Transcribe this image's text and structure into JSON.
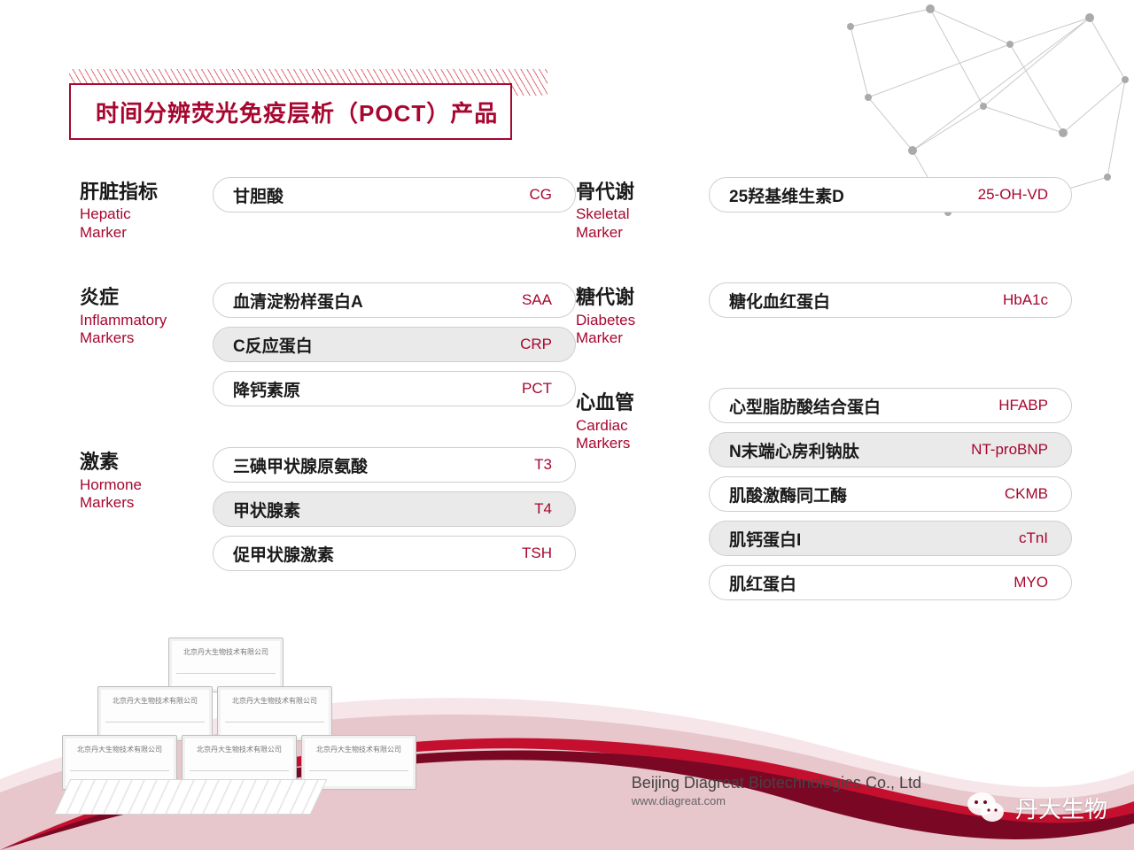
{
  "colors": {
    "brand_red": "#a7062f",
    "hatch_red": "#c90c22",
    "pill_border": "#cfcfcf",
    "pill_alt_bg": "#eaeaea",
    "text_dark": "#1a1a1a",
    "swoosh_top": "#7a0824",
    "swoosh_mid": "#c4102e",
    "swoosh_low": "#f4d9dd",
    "net_line": "#b7b7b7",
    "net_dot": "#9a9a9a"
  },
  "title": "时间分辨荧光免疫层析（POCT）产品",
  "left_column": [
    {
      "label_zh": "肝脏指标",
      "label_en": "Hepatic Marker",
      "items": [
        {
          "name": "甘胆酸",
          "code": "CG",
          "alt": false
        }
      ]
    },
    {
      "label_zh": "炎症",
      "label_en": "Inflammatory Markers",
      "items": [
        {
          "name": "血清淀粉样蛋白A",
          "code": "SAA",
          "alt": false
        },
        {
          "name": "C反应蛋白",
          "code": "CRP",
          "alt": true
        },
        {
          "name": "降钙素原",
          "code": "PCT",
          "alt": false
        }
      ]
    },
    {
      "label_zh": "激素",
      "label_en": "Hormone Markers",
      "items": [
        {
          "name": "三碘甲状腺原氨酸",
          "code": "T3",
          "alt": false
        },
        {
          "name": "甲状腺素",
          "code": "T4",
          "alt": true
        },
        {
          "name": "促甲状腺激素",
          "code": "TSH",
          "alt": false
        }
      ]
    }
  ],
  "right_column": [
    {
      "label_zh": "骨代谢",
      "label_en": "Skeletal Marker",
      "items": [
        {
          "name": "25羟基维生素D",
          "code": "25-OH-VD",
          "alt": false
        }
      ]
    },
    {
      "label_zh": "糖代谢",
      "label_en": "Diabetes Marker",
      "items": [
        {
          "name": "糖化血红蛋白",
          "code": "HbA1c",
          "alt": false
        }
      ]
    },
    {
      "label_zh": "心血管",
      "label_en": "Cardiac Markers",
      "items": [
        {
          "name": "心型脂肪酸结合蛋白",
          "code": "HFABP",
          "alt": false
        },
        {
          "name": "N末端心房利钠肽",
          "code": "NT-proBNP",
          "alt": true
        },
        {
          "name": "肌酸激酶同工酶",
          "code": "CKMB",
          "alt": false
        },
        {
          "name": "肌钙蛋白I",
          "code": "cTnI",
          "alt": true
        },
        {
          "name": "肌红蛋白",
          "code": "MYO",
          "alt": false
        }
      ]
    }
  ],
  "footer": {
    "company": "Beijing Diagreat Biotechnologies Co., Ltd",
    "url": "www.diagreat.com"
  },
  "wechat_label": "丹大生物",
  "product_box_label": "北京丹大生物技术有限公司"
}
